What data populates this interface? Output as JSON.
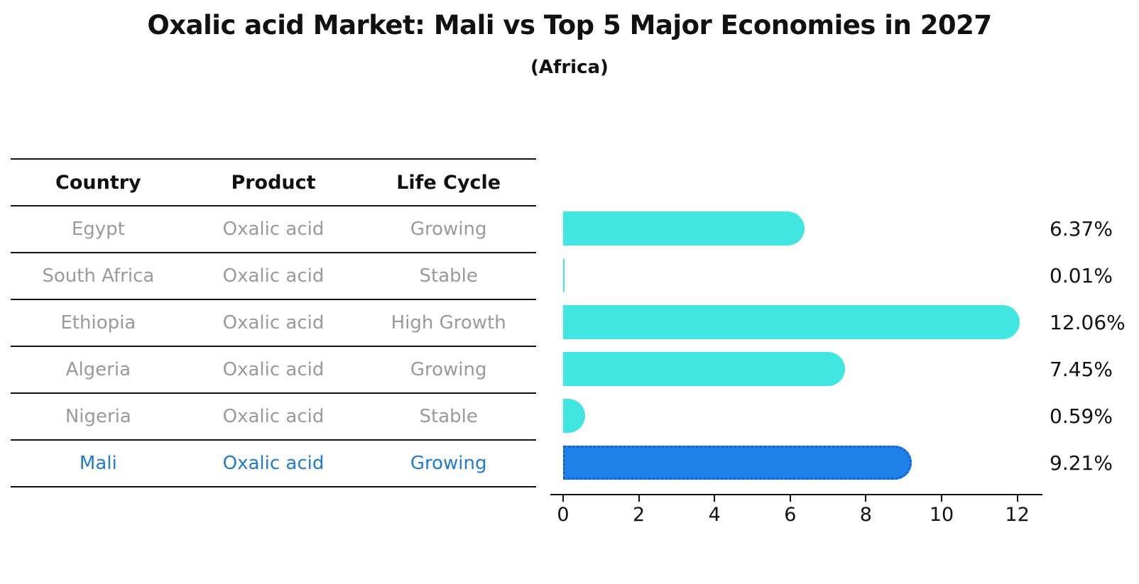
{
  "title": "Oxalic acid Market: Mali vs Top 5 Major Economies in 2027",
  "subtitle": "(Africa)",
  "table": {
    "headers": [
      "Country",
      "Product",
      "Life Cycle"
    ],
    "rows": [
      {
        "country": "Egypt",
        "product": "Oxalic acid",
        "life_cycle": "Growing",
        "highlight": false
      },
      {
        "country": "South Africa",
        "product": "Oxalic acid",
        "life_cycle": "Stable",
        "highlight": false
      },
      {
        "country": "Ethiopia",
        "product": "Oxalic acid",
        "life_cycle": "High Growth",
        "highlight": false
      },
      {
        "country": "Algeria",
        "product": "Oxalic acid",
        "life_cycle": "Growing",
        "highlight": false
      },
      {
        "country": "Nigeria",
        "product": "Oxalic acid",
        "life_cycle": "Stable",
        "highlight": false
      },
      {
        "country": "Mali",
        "product": "Oxalic acid",
        "life_cycle": "Growing",
        "highlight": true
      }
    ]
  },
  "chart_data": {
    "type": "bar",
    "orientation": "horizontal",
    "title": "Oxalic acid Market: Mali vs Top 5 Major Economies in 2027",
    "subtitle": "(Africa)",
    "categories": [
      "Egypt",
      "South Africa",
      "Ethiopia",
      "Algeria",
      "Nigeria",
      "Mali"
    ],
    "values": [
      6.37,
      0.01,
      12.06,
      7.45,
      0.59,
      9.21
    ],
    "value_labels": [
      "6.37%",
      "0.01%",
      "12.06%",
      "7.45%",
      "0.59%",
      "9.21%"
    ],
    "x_ticks": [
      0,
      2,
      4,
      6,
      8,
      10,
      12
    ],
    "xlim": [
      0,
      12.67
    ],
    "grid": false,
    "legend": false,
    "highlight_category": "Mali"
  },
  "colors": {
    "bar_default": "#41e6e0",
    "bar_highlight": "#1e80e8",
    "bar_highlight_border": "#1463c8",
    "table_text_muted": "#9a9a9a",
    "table_text_highlight": "#1f7bd4",
    "text_primary": "#111111"
  }
}
